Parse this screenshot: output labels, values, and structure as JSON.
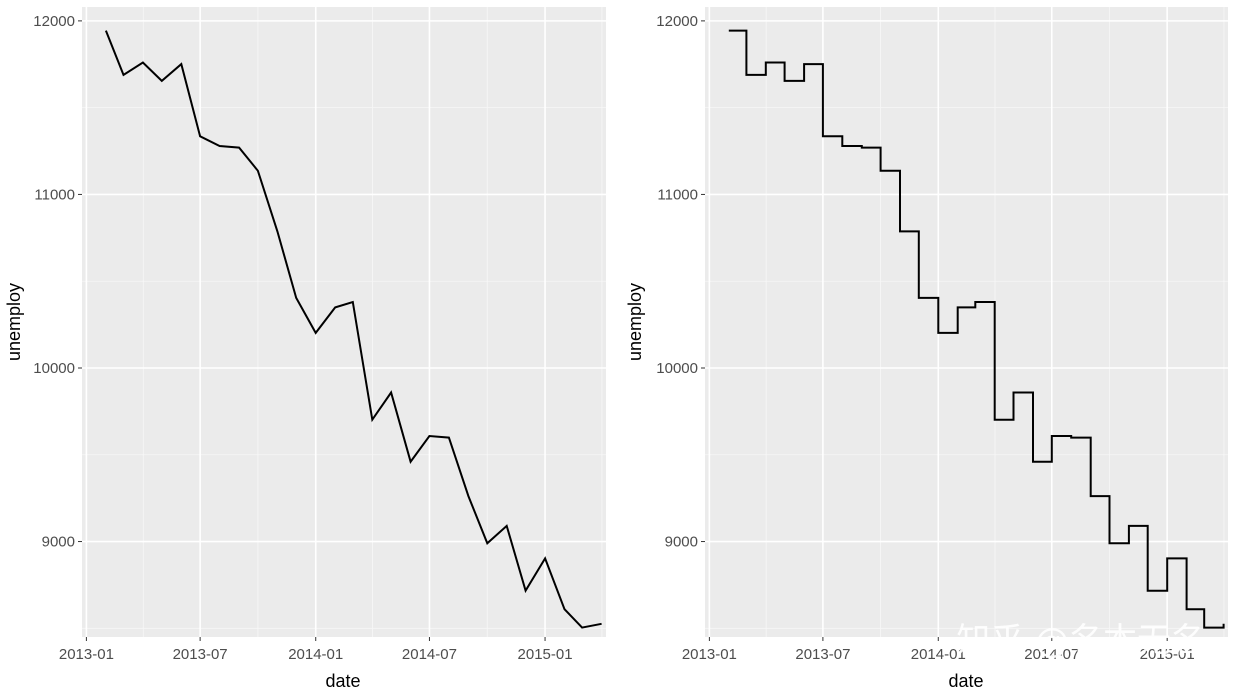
{
  "chart_data": [
    {
      "type": "line",
      "xlabel": "date",
      "ylabel": "unemploy",
      "ylim": [
        8450,
        12080
      ],
      "yticks": [
        9000,
        10000,
        11000,
        12000
      ],
      "xlim": [
        "2012-12-25",
        "2015-04-08"
      ],
      "xticks": [
        "2013-01",
        "2013-07",
        "2014-01",
        "2014-07",
        "2015-01"
      ],
      "grid": true,
      "series": [
        {
          "x": [
            "2013-02-01",
            "2013-03-01",
            "2013-04-01",
            "2013-05-01",
            "2013-06-01",
            "2013-07-01",
            "2013-08-01",
            "2013-09-01",
            "2013-10-01",
            "2013-11-01",
            "2013-12-01",
            "2014-01-01",
            "2014-02-01",
            "2014-03-01",
            "2014-04-01",
            "2014-05-01",
            "2014-06-01",
            "2014-07-01",
            "2014-08-01",
            "2014-09-01",
            "2014-10-01",
            "2014-11-01",
            "2014-12-01",
            "2015-01-01",
            "2015-02-01",
            "2015-03-01",
            "2015-04-01"
          ],
          "values": [
            11944,
            11689,
            11760,
            11654,
            11751,
            11335,
            11279,
            11270,
            11136,
            10787,
            10404,
            10202,
            10349,
            10380,
            9702,
            9859,
            9460,
            9608,
            9599,
            9262,
            8990,
            9090,
            8717,
            8903,
            8610,
            8504,
            8526
          ]
        }
      ]
    },
    {
      "type": "line",
      "step": true,
      "xlabel": "date",
      "ylabel": "unemploy",
      "ylim": [
        8450,
        12080
      ],
      "yticks": [
        9000,
        10000,
        11000,
        12000
      ],
      "xlim": [
        "2012-12-25",
        "2015-04-08"
      ],
      "xticks": [
        "2013-01",
        "2013-07",
        "2014-01",
        "2014-07",
        "2015-01"
      ],
      "grid": true,
      "series": [
        {
          "x": [
            "2013-02-01",
            "2013-03-01",
            "2013-04-01",
            "2013-05-01",
            "2013-06-01",
            "2013-07-01",
            "2013-08-01",
            "2013-09-01",
            "2013-10-01",
            "2013-11-01",
            "2013-12-01",
            "2014-01-01",
            "2014-02-01",
            "2014-03-01",
            "2014-04-01",
            "2014-05-01",
            "2014-06-01",
            "2014-07-01",
            "2014-08-01",
            "2014-09-01",
            "2014-10-01",
            "2014-11-01",
            "2014-12-01",
            "2015-01-01",
            "2015-02-01",
            "2015-03-01",
            "2015-04-01"
          ],
          "values": [
            11944,
            11689,
            11760,
            11654,
            11751,
            11335,
            11279,
            11270,
            11136,
            10787,
            10404,
            10202,
            10349,
            10380,
            9702,
            9859,
            9460,
            9608,
            9599,
            9262,
            8990,
            9090,
            8717,
            8903,
            8610,
            8504,
            8526
          ]
        }
      ]
    }
  ],
  "watermark": "知乎 @名本无名",
  "colors": {
    "panel": "#ebebeb",
    "grid": "#ffffff",
    "line": "#000000"
  }
}
